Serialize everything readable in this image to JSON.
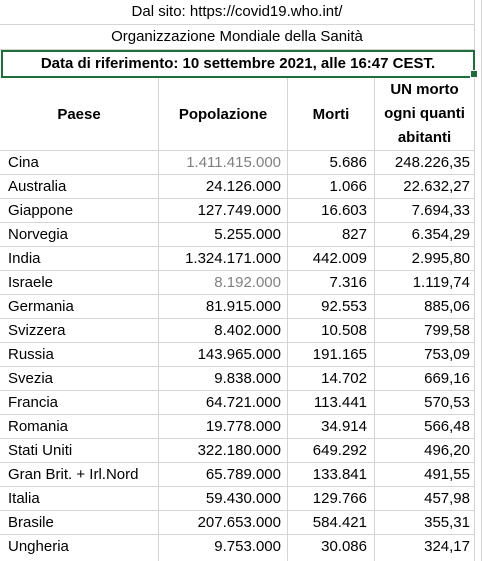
{
  "header": {
    "source": "Dal sito: https://covid19.who.int/",
    "organization": "Organizzazione Mondiale della Sanità",
    "reference_date": "Data di riferimento: 10 settembre 2021, alle 16:47 CEST."
  },
  "columns": {
    "paese": "Paese",
    "popolazione": "Popolazione",
    "morti": "Morti",
    "ratio_line1": "UN morto",
    "ratio_line2": "ogni quanti",
    "ratio_line3": "abitanti"
  },
  "rows": [
    {
      "paese": "Cina",
      "popolazione": "1.411.415.000",
      "morti": "5.686",
      "ratio": "248.226,35",
      "pop_gray": true
    },
    {
      "paese": "Australia",
      "popolazione": "24.126.000",
      "morti": "1.066",
      "ratio": "22.632,27",
      "pop_gray": false
    },
    {
      "paese": "Giappone",
      "popolazione": "127.749.000",
      "morti": "16.603",
      "ratio": "7.694,33",
      "pop_gray": false
    },
    {
      "paese": "Norvegia",
      "popolazione": "5.255.000",
      "morti": "827",
      "ratio": "6.354,29",
      "pop_gray": false
    },
    {
      "paese": "India",
      "popolazione": "1.324.171.000",
      "morti": "442.009",
      "ratio": "2.995,80",
      "pop_gray": false
    },
    {
      "paese": "Israele",
      "popolazione": "8.192.000",
      "morti": "7.316",
      "ratio": "1.119,74",
      "pop_gray": true
    },
    {
      "paese": "Germania",
      "popolazione": "81.915.000",
      "morti": "92.553",
      "ratio": "885,06",
      "pop_gray": false
    },
    {
      "paese": "Svizzera",
      "popolazione": "8.402.000",
      "morti": "10.508",
      "ratio": "799,58",
      "pop_gray": false
    },
    {
      "paese": "Russia",
      "popolazione": "143.965.000",
      "morti": "191.165",
      "ratio": "753,09",
      "pop_gray": false
    },
    {
      "paese": "Svezia",
      "popolazione": "9.838.000",
      "morti": "14.702",
      "ratio": "669,16",
      "pop_gray": false
    },
    {
      "paese": "Francia",
      "popolazione": "64.721.000",
      "morti": "113.441",
      "ratio": "570,53",
      "pop_gray": false
    },
    {
      "paese": "Romania",
      "popolazione": "19.778.000",
      "morti": "34.914",
      "ratio": "566,48",
      "pop_gray": false
    },
    {
      "paese": "Stati Uniti",
      "popolazione": "322.180.000",
      "morti": "649.292",
      "ratio": "496,20",
      "pop_gray": false
    },
    {
      "paese": "Gran Brit. + Irl.Nord",
      "popolazione": "65.789.000",
      "morti": "133.841",
      "ratio": "491,55",
      "pop_gray": false
    },
    {
      "paese": "Italia",
      "popolazione": "59.430.000",
      "morti": "129.766",
      "ratio": "457,98",
      "pop_gray": false
    },
    {
      "paese": "Brasile",
      "popolazione": "207.653.000",
      "morti": "584.421",
      "ratio": "355,31",
      "pop_gray": false
    },
    {
      "paese": "Ungheria",
      "popolazione": "9.753.000",
      "morti": "30.086",
      "ratio": "324,17",
      "pop_gray": false
    }
  ]
}
